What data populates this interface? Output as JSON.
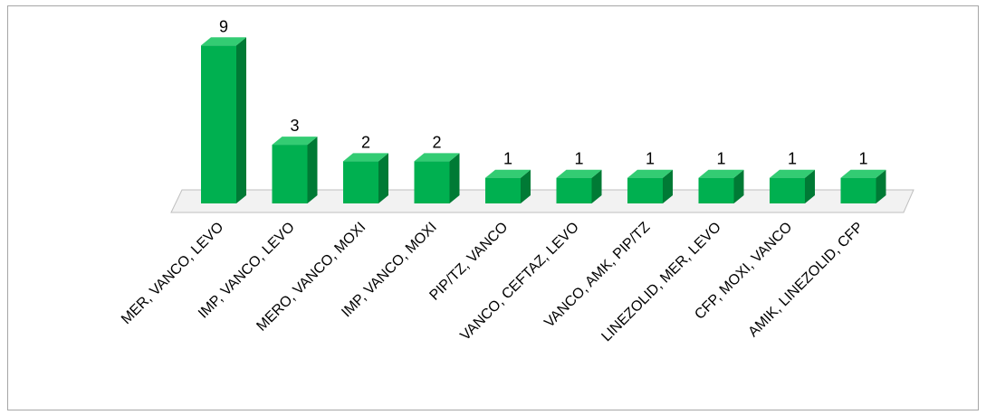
{
  "chart_data": {
    "type": "bar",
    "title": "",
    "xlabel": "",
    "ylabel": "",
    "categories": [
      "MER, VANCO, LEVO",
      "IMP, VANCO, LEVO",
      "MERO, VANCO, MOXI",
      "IMP, VANCO, MOXI",
      "PIP/TZ, VANCO",
      "VANCO, CEFTAZ, LEVO",
      "VANCO, AMK, PIP/TZ",
      "LINEZOLID, MER, LEVO",
      "CFP, MOXI, VANCO",
      "AMIK, LINEZOLID, CFP"
    ],
    "values": [
      9,
      3,
      2,
      2,
      1,
      1,
      1,
      1,
      1,
      1
    ],
    "ylim": [
      0,
      9
    ],
    "grid": false,
    "legend": "none",
    "data_labels": true,
    "colors": {
      "bar_front": "#00b050",
      "bar_side": "#007a35",
      "bar_top": "#33cc73",
      "floor": "#f2f2f2",
      "floor_edge": "#bfbfbf"
    }
  }
}
